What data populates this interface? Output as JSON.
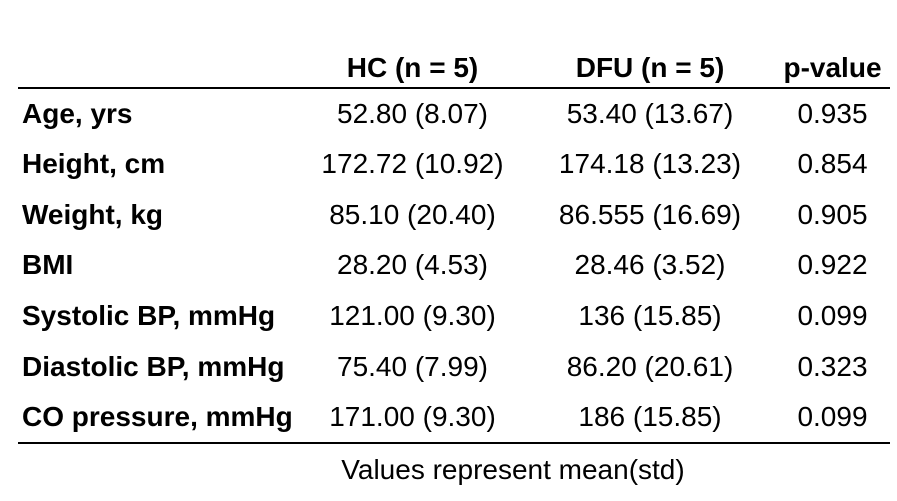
{
  "table": {
    "columns": [
      "",
      "HC (n = 5)",
      "DFU (n = 5)",
      "p-value"
    ],
    "rows": [
      {
        "label": "Age, yrs",
        "hc": "52.80 (8.07)",
        "dfu": "53.40 (13.67)",
        "p": "0.935"
      },
      {
        "label": "Height, cm",
        "hc": "172.72 (10.92)",
        "dfu": "174.18 (13.23)",
        "p": "0.854"
      },
      {
        "label": "Weight, kg",
        "hc": "85.10 (20.40)",
        "dfu": "86.555 (16.69)",
        "p": "0.905"
      },
      {
        "label": "BMI",
        "hc": "28.20 (4.53)",
        "dfu": "28.46 (3.52)",
        "p": "0.922"
      },
      {
        "label": "Systolic BP, mmHg",
        "hc": "121.00 (9.30)",
        "dfu": "136 (15.85)",
        "p": "0.099"
      },
      {
        "label": "Diastolic BP, mmHg",
        "hc": "75.40 (7.99)",
        "dfu": "86.20 (20.61)",
        "p": "0.323"
      },
      {
        "label": "CO pressure, mmHg",
        "hc": "171.00 (9.30)",
        "dfu": "186 (15.85)",
        "p": "0.099"
      }
    ],
    "footnote": "Values represent mean(std)"
  },
  "colors": {
    "text": "#000000",
    "rule": "#000000",
    "background": "#ffffff"
  }
}
